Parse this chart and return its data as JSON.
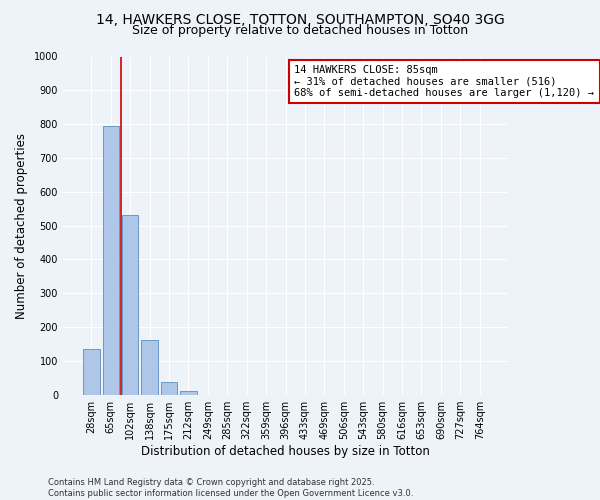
{
  "title_line1": "14, HAWKERS CLOSE, TOTTON, SOUTHAMPTON, SO40 3GG",
  "title_line2": "Size of property relative to detached houses in Totton",
  "xlabel": "Distribution of detached houses by size in Totton",
  "ylabel": "Number of detached properties",
  "categories": [
    "28sqm",
    "65sqm",
    "102sqm",
    "138sqm",
    "175sqm",
    "212sqm",
    "249sqm",
    "285sqm",
    "322sqm",
    "359sqm",
    "396sqm",
    "433sqm",
    "469sqm",
    "506sqm",
    "543sqm",
    "580sqm",
    "616sqm",
    "653sqm",
    "690sqm",
    "727sqm",
    "764sqm"
  ],
  "values": [
    135,
    795,
    530,
    162,
    37,
    12,
    0,
    0,
    0,
    0,
    0,
    0,
    0,
    0,
    0,
    0,
    0,
    0,
    0,
    0,
    0
  ],
  "bar_color": "#aec6e8",
  "bar_edge_color": "#5a8fc2",
  "vline_x": 1.5,
  "vline_color": "#cc0000",
  "annotation_text": "14 HAWKERS CLOSE: 85sqm\n← 31% of detached houses are smaller (516)\n68% of semi-detached houses are larger (1,120) →",
  "ann_box_color": "#cc0000",
  "ylim": [
    0,
    1000
  ],
  "yticks": [
    0,
    100,
    200,
    300,
    400,
    500,
    600,
    700,
    800,
    900,
    1000
  ],
  "bg_color": "#eef2f9",
  "plot_bg": "#eef2f9",
  "grid_color": "#ffffff",
  "footer": "Contains HM Land Registry data © Crown copyright and database right 2025.\nContains public sector information licensed under the Open Government Licence v3.0.",
  "title_fontsize": 10,
  "subtitle_fontsize": 9,
  "axis_label_fontsize": 8.5,
  "tick_fontsize": 7,
  "ann_fontsize": 7.5,
  "footer_fontsize": 6
}
